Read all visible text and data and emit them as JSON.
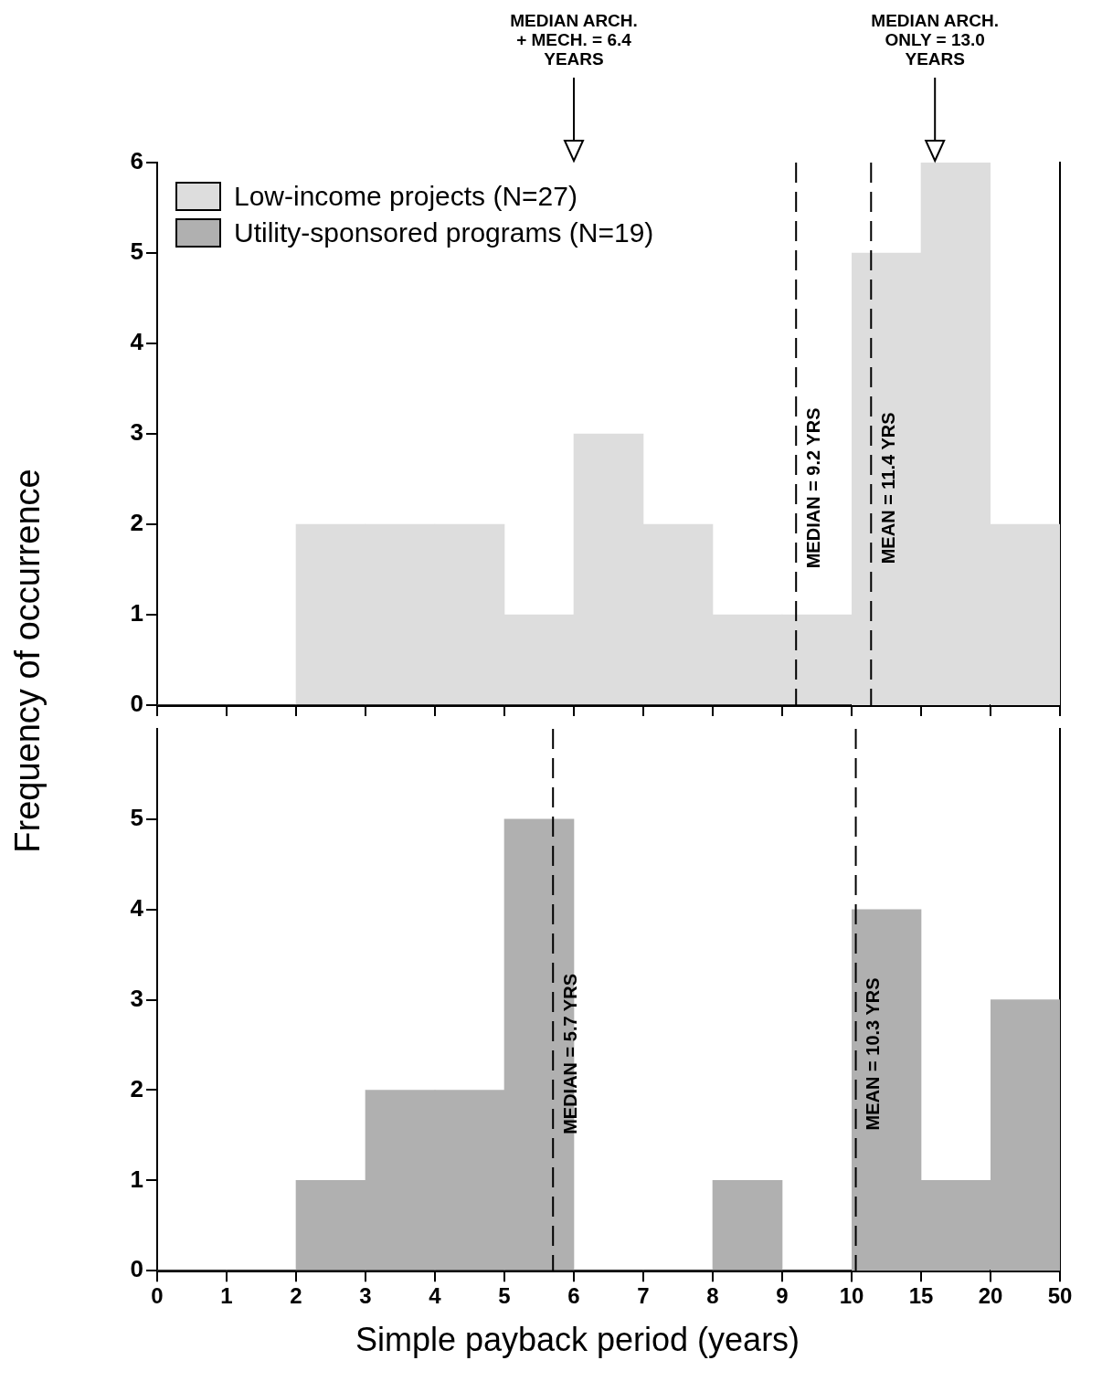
{
  "chart_data": [
    {
      "type": "histogram",
      "ylabel": "Frequency of occurrence",
      "bins": [
        0,
        1,
        2,
        3,
        4,
        5,
        6,
        7,
        8,
        9,
        10
      ],
      "series": [
        {
          "name": "Low-income projects (N=27)",
          "color": "#dddddd",
          "values": [
            0,
            0,
            2,
            2,
            2,
            1,
            3,
            2,
            1,
            1
          ]
        }
      ],
      "xlim": [
        0,
        10
      ],
      "xticks": [
        0,
        1,
        2,
        3,
        4,
        5,
        6,
        7,
        8,
        9,
        10
      ],
      "ylim": [
        0,
        6
      ],
      "yticks": [
        0,
        1,
        2,
        3,
        4,
        5,
        6
      ],
      "tick_labels": "y",
      "legend": "top left",
      "grid": false,
      "ref_lines": [
        {
          "axis": "x",
          "value": 9.2,
          "label": "MEDIAN = 9.2 YRS",
          "line_style": "dashed"
        }
      ],
      "annotations": [
        "MEDIAN ARCH. + MECH. = 6.4 YEARS"
      ]
    },
    {
      "type": "histogram",
      "bins": [
        10,
        15,
        20
      ],
      "series": [
        {
          "color": "#dddddd",
          "values": [
            5,
            6
          ]
        }
      ],
      "xlim": [
        10,
        20
      ],
      "xticks": [
        {
          "value": 10,
          "label": null
        },
        {
          "value": 15,
          "label": null
        },
        {
          "value": 20,
          "label": null
        }
      ],
      "ylim": [
        0,
        6
      ],
      "tick_labels": false,
      "grid": false,
      "ref_lines": [
        {
          "axis": "x",
          "value": 11.4,
          "label": "MEAN = 11.4 YRS",
          "line_style": "dashed"
        }
      ],
      "annotations": [
        "MEDIAN ARCH. ONLY = 13.0 YEARS"
      ]
    },
    {
      "type": "histogram",
      "bins": [
        20,
        50
      ],
      "series": [
        {
          "color": "#dddddd",
          "values": [
            2
          ]
        }
      ],
      "xlim": [
        20,
        50
      ],
      "xticks": [
        {
          "value": 20,
          "label": null
        },
        {
          "value": 50,
          "label": null
        }
      ],
      "ylim": [
        0,
        6
      ],
      "tick_labels": false,
      "grid": false
    },
    {
      "type": "histogram",
      "bins": [
        0,
        1,
        2,
        3,
        4,
        5,
        6,
        7,
        8,
        9,
        10
      ],
      "series": [
        {
          "name": "Utility-sponsored programs (N=19)",
          "color": "#b0b0b0",
          "values": [
            0,
            0,
            1,
            2,
            2,
            5,
            0,
            0,
            1,
            0
          ]
        }
      ],
      "xlim": [
        0,
        10
      ],
      "xticks": [
        0,
        1,
        2,
        3,
        4,
        5,
        6,
        7,
        8,
        9,
        {
          "value": 10,
          "label": null
        }
      ],
      "ylim": [
        0,
        6
      ],
      "yticks": [
        0,
        1,
        2,
        3,
        4,
        5
      ],
      "grid": false,
      "ref_lines": [
        {
          "axis": "x",
          "value": 5.7,
          "label": "MEDIAN = 5.7 YRS",
          "line_style": "dashed"
        }
      ]
    },
    {
      "type": "histogram",
      "xlabel": "Simple payback period (years)",
      "bins": [
        10,
        15,
        20
      ],
      "series": [
        {
          "color": "#b0b0b0",
          "values": [
            4,
            1
          ]
        }
      ],
      "xlim": [
        10,
        20
      ],
      "xticks": [
        10,
        15,
        {
          "value": 20,
          "label": null
        }
      ],
      "ylim": [
        0,
        6
      ],
      "tick_labels": "x",
      "grid": false,
      "ref_lines": [
        {
          "axis": "x",
          "value": 10.3,
          "label": "MEAN = 10.3 YRS",
          "line_style": "dashed"
        }
      ]
    },
    {
      "type": "histogram",
      "bins": [
        20,
        50
      ],
      "series": [
        {
          "color": "#b0b0b0",
          "values": [
            3
          ]
        }
      ],
      "xlim": [
        20,
        50
      ],
      "xticks": [
        20,
        50
      ],
      "ylim": [
        0,
        6
      ],
      "tick_labels": "x",
      "grid": false
    }
  ]
}
